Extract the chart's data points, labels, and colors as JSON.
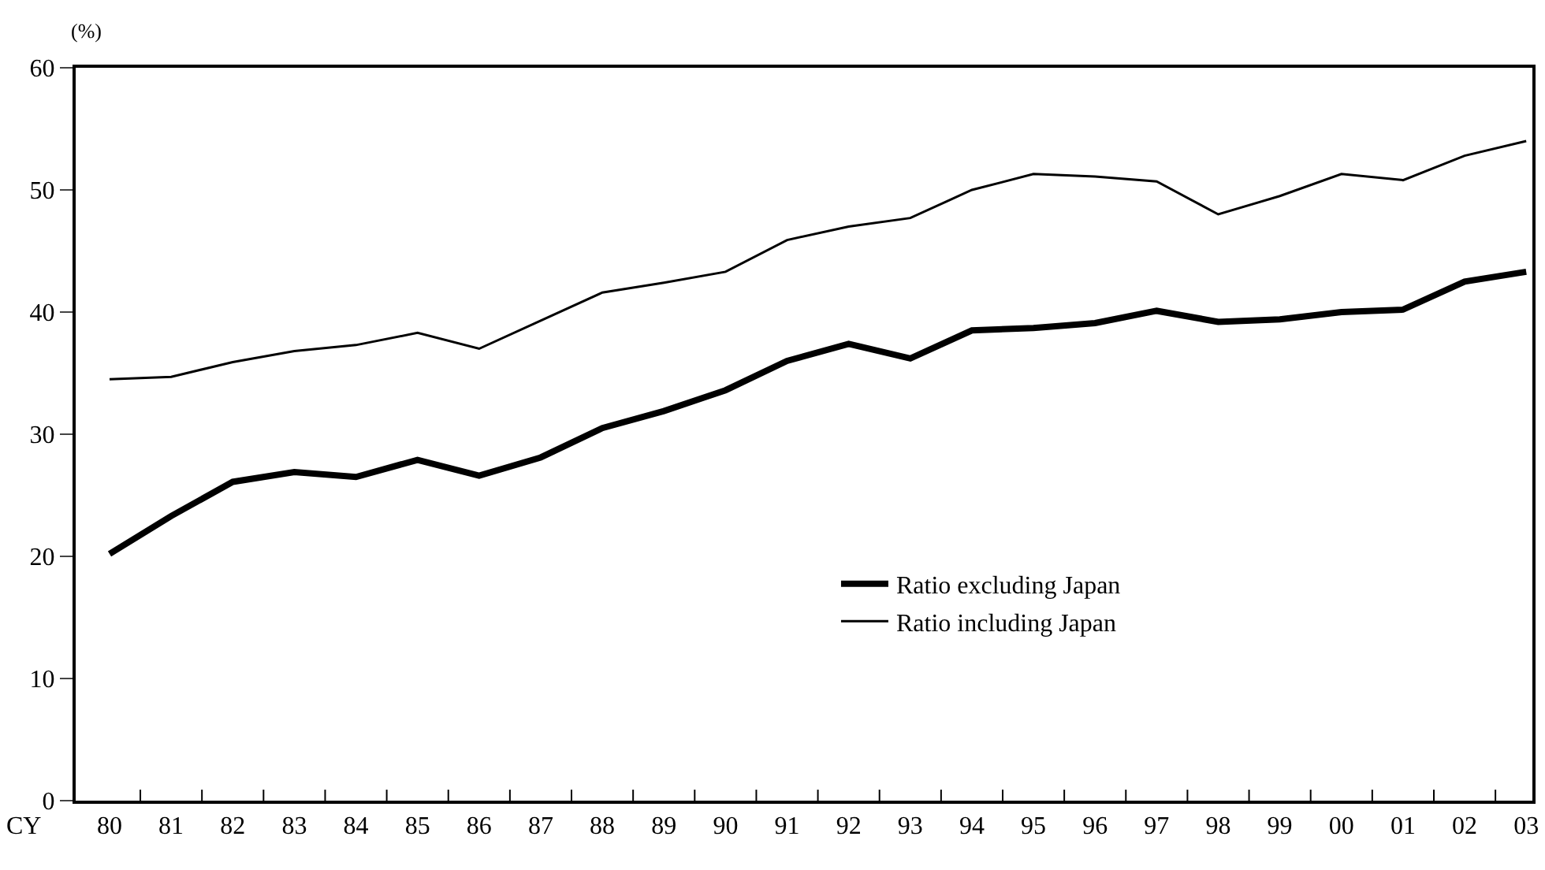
{
  "chart_data": {
    "type": "line",
    "xlabel": "CY",
    "ylabel": "(%)",
    "categories": [
      "80",
      "81",
      "82",
      "83",
      "84",
      "85",
      "86",
      "87",
      "88",
      "89",
      "90",
      "91",
      "92",
      "93",
      "94",
      "95",
      "96",
      "97",
      "98",
      "99",
      "00",
      "01",
      "02",
      "03"
    ],
    "series": [
      {
        "name": "Ratio excluding Japan",
        "color": "#000000",
        "values": [
          20.2,
          23.3,
          26.1,
          26.9,
          26.5,
          27.9,
          26.6,
          28.1,
          30.5,
          31.9,
          33.6,
          36.0,
          37.4,
          36.2,
          38.5,
          38.7,
          39.1,
          40.1,
          39.2,
          39.4,
          40.0,
          40.2,
          42.5,
          43.3
        ]
      },
      {
        "name": "Ratio including Japan",
        "color": "#000000",
        "values": [
          34.5,
          34.7,
          35.9,
          36.8,
          37.3,
          38.3,
          37.0,
          39.3,
          41.6,
          42.4,
          43.3,
          45.9,
          47.0,
          47.7,
          50.0,
          51.3,
          51.1,
          50.7,
          48.0,
          49.5,
          51.3,
          50.8,
          52.8,
          54.0
        ]
      }
    ],
    "ylim": [
      0,
      60
    ],
    "yticks": [
      0,
      10,
      20,
      30,
      40,
      50,
      60
    ],
    "legend": "bottom",
    "marker": "none",
    "line_style": "solid"
  }
}
